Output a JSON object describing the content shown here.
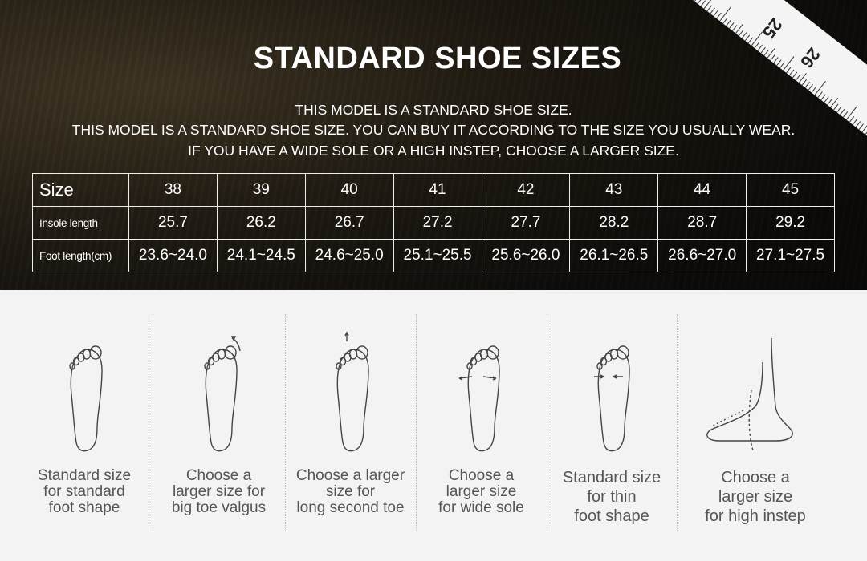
{
  "title": "STANDARD SHOE SIZES",
  "notes": [
    "THIS MODEL IS A STANDARD SHOE SIZE.",
    "THIS MODEL IS A STANDARD SHOE SIZE. YOU CAN BUY IT ACCORDING TO THE SIZE YOU USUALLY WEAR.",
    "IF YOU HAVE A WIDE SOLE OR A HIGH INSTEP, CHOOSE A LARGER SIZE."
  ],
  "ruler": [
    "25",
    "26"
  ],
  "table": {
    "rows": [
      {
        "label": "Size",
        "values": [
          "38",
          "39",
          "40",
          "41",
          "42",
          "43",
          "44",
          "45"
        ]
      },
      {
        "label": "Insole length",
        "values": [
          "25.7",
          "26.2",
          "26.7",
          "27.2",
          "27.7",
          "28.2",
          "28.7",
          "29.2"
        ]
      },
      {
        "label": "Foot length(cm)",
        "values": [
          "23.6~24.0",
          "24.1~24.5",
          "24.6~25.0",
          "25.1~25.5",
          "25.6~26.0",
          "26.1~26.5",
          "26.6~27.0",
          "27.1~27.5"
        ]
      }
    ]
  },
  "foot_types": [
    {
      "icon": "standard-foot-icon",
      "caption": [
        "Standard size",
        "for standard",
        "foot shape"
      ]
    },
    {
      "icon": "big-toe-valgus-foot-icon",
      "caption": [
        "Choose a",
        "larger size for",
        "big toe valgus"
      ]
    },
    {
      "icon": "long-second-toe-foot-icon",
      "caption": [
        "Choose a larger",
        "size for",
        "long second toe"
      ]
    },
    {
      "icon": "wide-sole-foot-icon",
      "caption": [
        "Choose a",
        "larger size",
        "for wide sole"
      ]
    },
    {
      "icon": "thin-foot-icon",
      "caption": [
        "Standard size",
        "for thin",
        "foot shape"
      ]
    },
    {
      "icon": "high-instep-foot-icon",
      "caption": [
        "Choose a",
        "larger size",
        "for high instep"
      ]
    }
  ]
}
